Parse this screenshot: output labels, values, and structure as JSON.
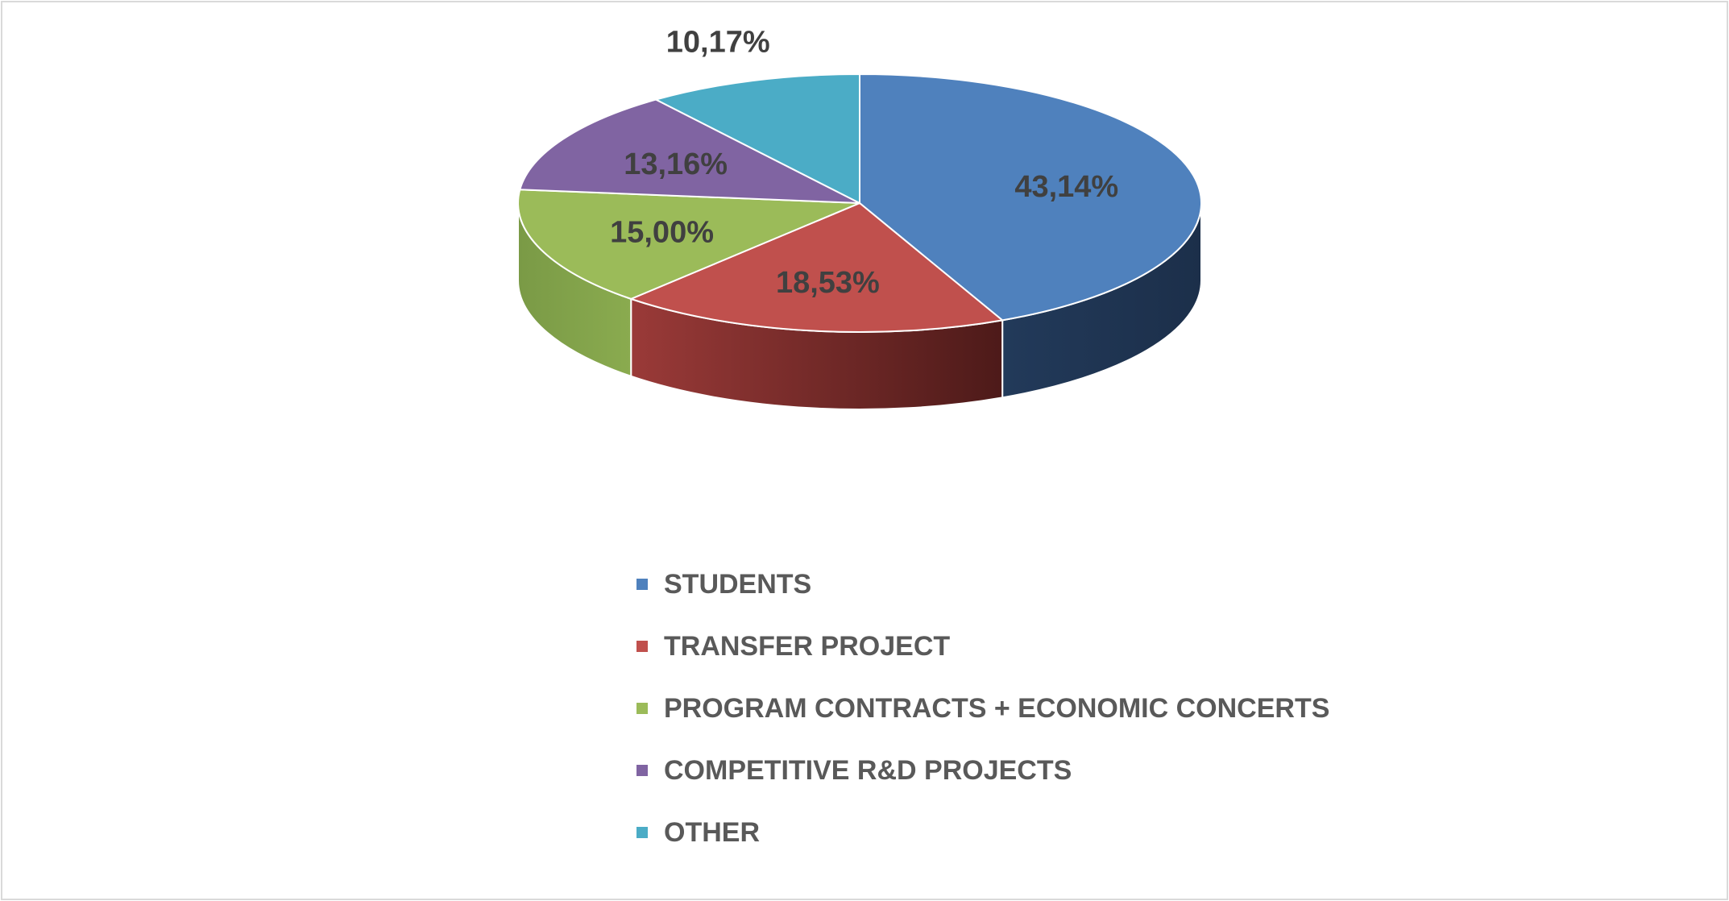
{
  "chart_data": {
    "type": "pie",
    "title": "",
    "three_d": true,
    "legend_position": "bottom",
    "slices": [
      {
        "name": "STUDENTS",
        "value": 43.14,
        "label": "43,14%",
        "color": "#4F81BD"
      },
      {
        "name": "TRANSFER PROJECT",
        "value": 18.53,
        "label": "18,53%",
        "color": "#C0504D"
      },
      {
        "name": "PROGRAM CONTRACTS + ECONOMIC CONCERTS",
        "value": 15.0,
        "label": "15,00%",
        "color": "#9BBB59"
      },
      {
        "name": "COMPETITIVE R&D PROJECTS",
        "value": 13.16,
        "label": "13,16%",
        "color": "#8064A2"
      },
      {
        "name": "OTHER",
        "value": 10.17,
        "label": "10,17%",
        "color": "#4BACC6"
      }
    ]
  }
}
